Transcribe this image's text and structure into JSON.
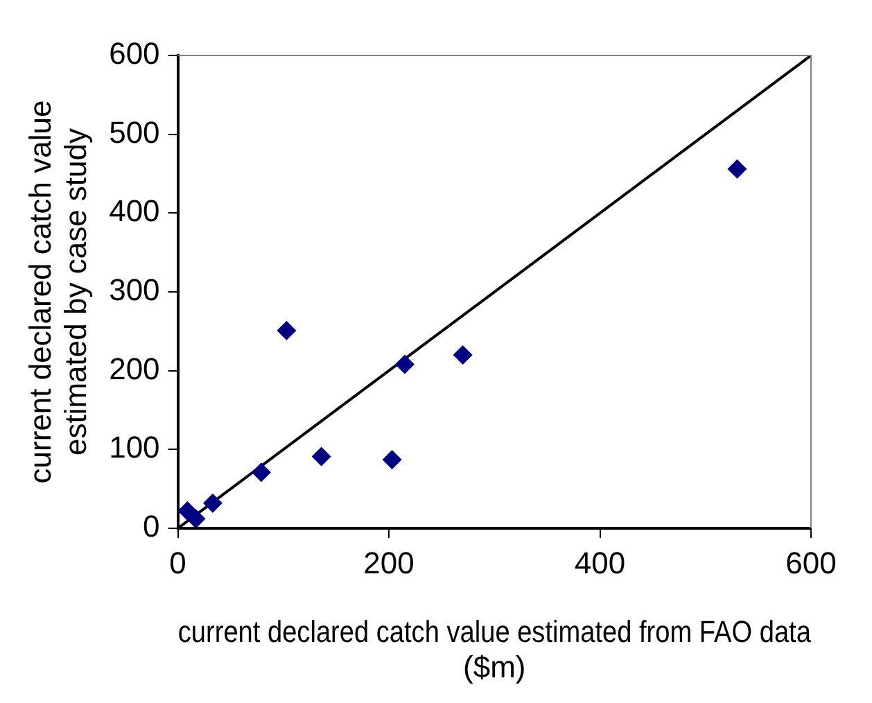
{
  "chart_data": {
    "type": "scatter",
    "xlabel": "current declared catch value estimated from FAO data ($m)",
    "ylabel": "current declared catch value estimated by case study",
    "x": [
      9,
      17,
      33,
      79,
      103,
      136,
      203,
      215,
      270,
      530
    ],
    "series": [
      {
        "color": "#000080",
        "values": [
          22,
          12,
          32,
          71,
          251,
          91,
          87,
          208,
          220,
          456
        ],
        "marker": "diamond"
      },
      {
        "type": "line",
        "color": "#000000",
        "x": [
          0,
          600
        ],
        "values": [
          0,
          600
        ],
        "marker": "none"
      }
    ],
    "xlim": [
      0,
      600
    ],
    "xticks": [
      0,
      200,
      400,
      600
    ],
    "ylim": [
      0,
      600
    ],
    "yticks": [
      0,
      100,
      200,
      300,
      400,
      500,
      600
    ],
    "grid": false,
    "legend": false
  }
}
